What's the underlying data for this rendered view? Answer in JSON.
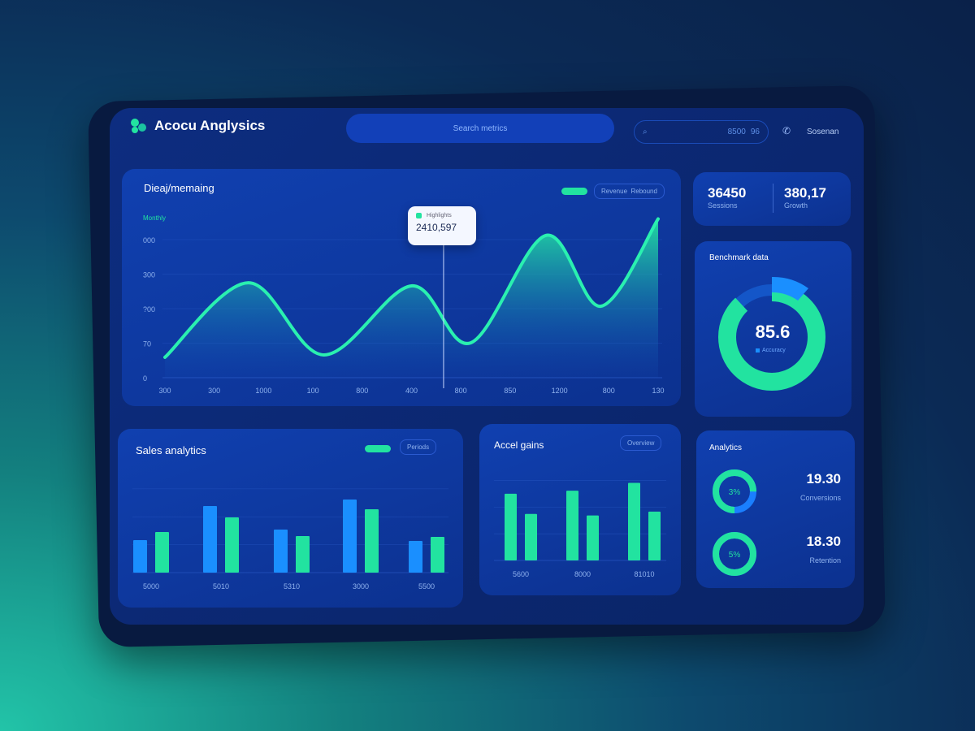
{
  "header": {
    "app_title": "Acocu Anglysics",
    "search_pill_text": "Search metrics",
    "search_box_value": "8500",
    "search_box_suffix": "96",
    "phone_icon": "phone-icon",
    "user_label": "Sosenan"
  },
  "main_chart": {
    "title": "Dieaj/memaing",
    "legend_label": "Revenue",
    "legend_button": "Rebound",
    "series_label": "Monthly",
    "tooltip": {
      "label": "Highlights",
      "value": "2410,597"
    }
  },
  "stats": [
    {
      "value": "36450",
      "label": "Sessions"
    },
    {
      "value": "380,17",
      "label": "Growth"
    }
  ],
  "donut_card": {
    "title": "Benchmark data",
    "value": "85.6",
    "label": "Accuracy",
    "percent": 88
  },
  "sales_card": {
    "title": "Sales analytics",
    "button": "Periods"
  },
  "gains_card": {
    "title": "Accel gains",
    "button": "Overview"
  },
  "analytics_card": {
    "title": "Analytics",
    "items": [
      {
        "ring_label": "3%",
        "value": "19.30",
        "label": "Conversions",
        "percent": 75
      },
      {
        "ring_label": "5%",
        "value": "18.30",
        "label": "Retention",
        "percent": 100
      }
    ]
  },
  "colors": {
    "green": "#22e3a0",
    "blue": "#1a8fff",
    "card": "#0d35a0"
  },
  "chart_data": [
    {
      "type": "area",
      "title": "Dieaj/memaing",
      "ytick_labels": [
        "0",
        "70",
        "?00",
        "300",
        "000"
      ],
      "yticks": [
        0,
        1,
        2,
        3,
        4
      ],
      "ylim": [
        0,
        4.7
      ],
      "x_labels": [
        "300",
        "300",
        "1000",
        "100",
        "800",
        "400",
        "800",
        "850",
        "1200",
        "800",
        "130"
      ],
      "x": [
        0,
        1.69,
        3.22,
        5.0,
        6.2,
        7.72,
        8.84,
        10
      ],
      "y": [
        0.59,
        2.75,
        0.66,
        2.66,
        1.01,
        4.12,
        2.07,
        4.6
      ],
      "tooltip_x": 5.65,
      "xlim": [
        0,
        10
      ]
    },
    {
      "type": "bar",
      "title": "Sales analytics",
      "categories": [
        "5000",
        "5010",
        "5310",
        "3000",
        "5500"
      ],
      "series": [
        {
          "name": "blue",
          "values": [
            40,
            82,
            53,
            90,
            39
          ]
        },
        {
          "name": "green",
          "values": [
            50,
            68,
            45,
            78,
            44
          ]
        }
      ],
      "ylim": [
        0,
        110
      ]
    },
    {
      "type": "bar",
      "title": "Accel gains",
      "categories": [
        "5600",
        "8000",
        "81010"
      ],
      "series": [
        {
          "name": "green-a",
          "values": [
            86,
            90,
            100
          ]
        },
        {
          "name": "green-b",
          "values": [
            60,
            58,
            63
          ]
        }
      ],
      "ylim": [
        0,
        110
      ]
    }
  ]
}
